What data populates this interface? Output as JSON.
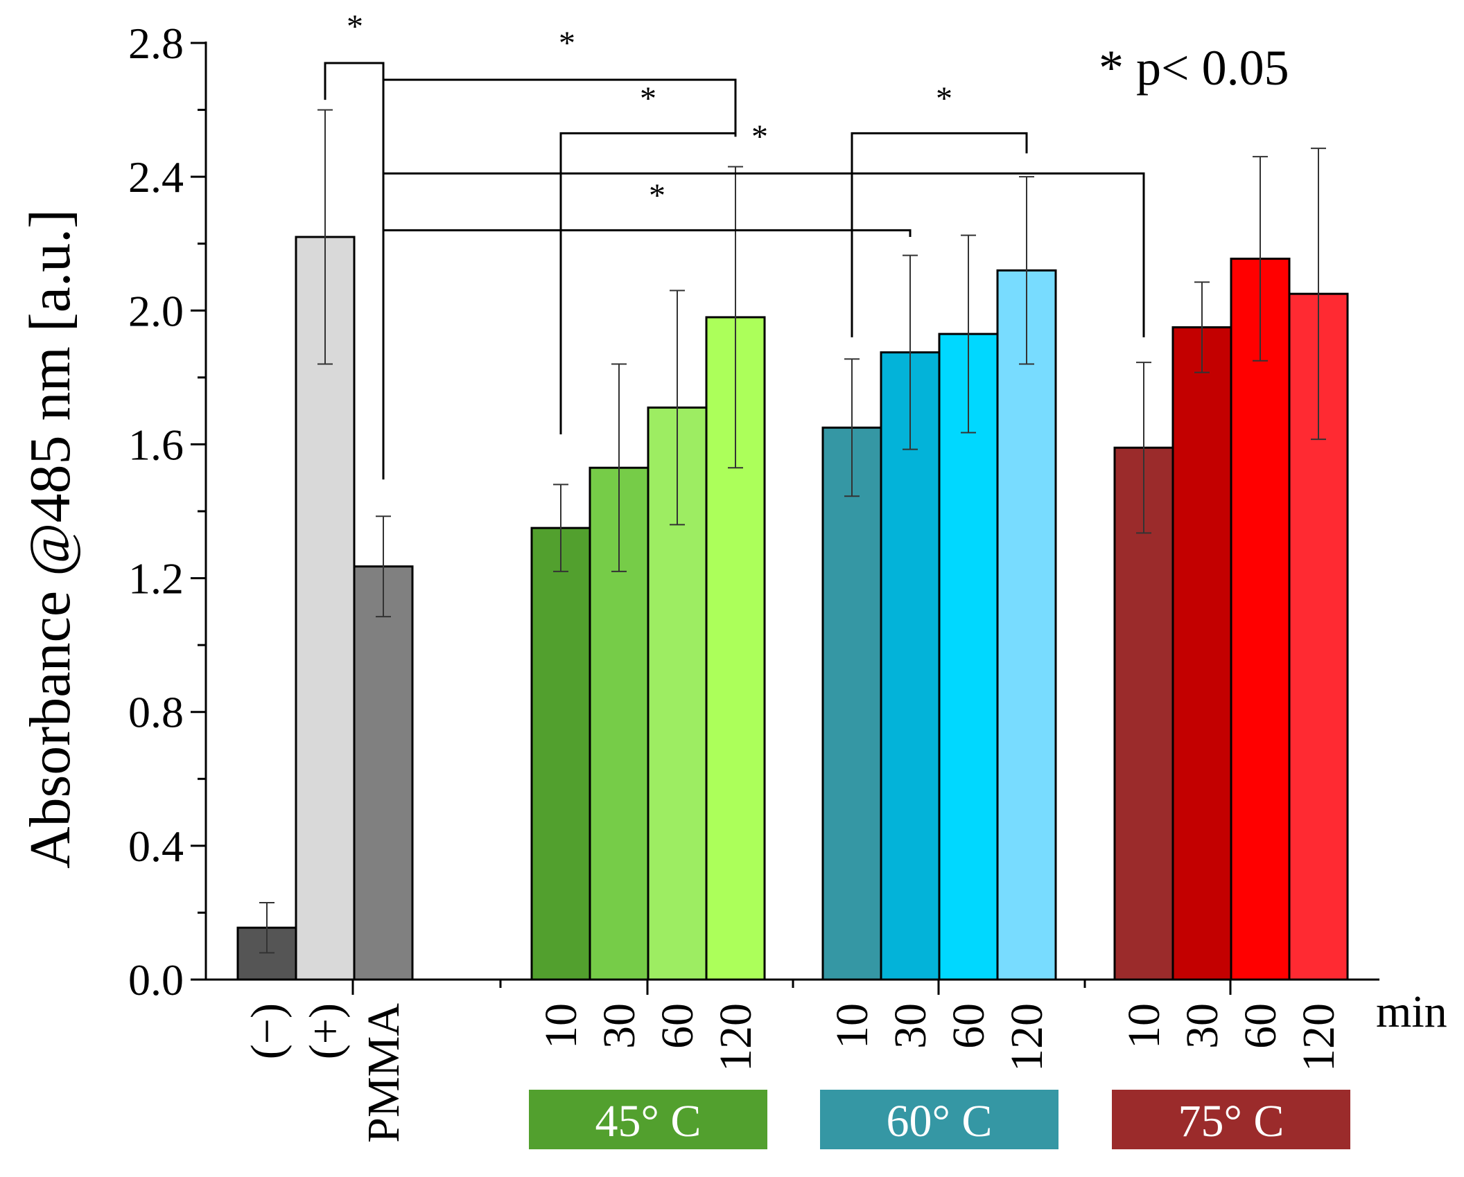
{
  "chart_data": {
    "type": "bar",
    "title": "",
    "ylabel": "Absorbance @485 nm [a.u.]",
    "xlabel": "",
    "x_unit_label": "min",
    "ylim": [
      0,
      2.8
    ],
    "y_ticks": [
      0.0,
      0.4,
      0.8,
      1.2,
      1.6,
      2.0,
      2.4,
      2.8
    ],
    "y_tick_labels": [
      "0.0",
      "0.4",
      "0.8",
      "1.2",
      "1.6",
      "2.0",
      "2.4",
      "2.8"
    ],
    "significance_note": "* p< 0.05",
    "significance_star": "*",
    "groups": [
      {
        "name": "controls",
        "label": "",
        "color": "",
        "bars": [
          {
            "label": "(−)",
            "value": 0.155,
            "error": 0.075,
            "color": "#555555"
          },
          {
            "label": "(+)",
            "value": 2.22,
            "error": 0.38,
            "color": "#d9d9d9"
          },
          {
            "label": "PMMA",
            "value": 1.235,
            "error": 0.15,
            "color": "#808080"
          }
        ]
      },
      {
        "name": "45C",
        "label": "45°  C",
        "color": "#52a02e",
        "bars": [
          {
            "label": "10",
            "value": 1.35,
            "error": 0.13,
            "color": "#52a02e"
          },
          {
            "label": "30",
            "value": 1.53,
            "error": 0.31,
            "color": "#76cc48"
          },
          {
            "label": "60",
            "value": 1.71,
            "error": 0.35,
            "color": "#9ded62"
          },
          {
            "label": "120",
            "value": 1.98,
            "error": 0.45,
            "color": "#acff5a"
          }
        ]
      },
      {
        "name": "60C",
        "label": "60°  C",
        "color": "#3597a4",
        "bars": [
          {
            "label": "10",
            "value": 1.65,
            "error": 0.205,
            "color": "#3597a4"
          },
          {
            "label": "30",
            "value": 1.875,
            "error": 0.29,
            "color": "#03b3d9"
          },
          {
            "label": "60",
            "value": 1.93,
            "error": 0.295,
            "color": "#00d8ff"
          },
          {
            "label": "120",
            "value": 2.12,
            "error": 0.28,
            "color": "#78dcff"
          }
        ]
      },
      {
        "name": "75C",
        "label": "75°  C",
        "color": "#9b2b2b",
        "bars": [
          {
            "label": "10",
            "value": 1.59,
            "error": 0.255,
            "color": "#9b2b2b"
          },
          {
            "label": "30",
            "value": 1.95,
            "error": 0.135,
            "color": "#c30000"
          },
          {
            "label": "60",
            "value": 2.155,
            "error": 0.305,
            "color": "#ff0000"
          },
          {
            "label": "120",
            "value": 2.05,
            "error": 0.435,
            "color": "#ff2a32"
          }
        ]
      }
    ],
    "significance_brackets": [
      {
        "from": "(+)",
        "to": "PMMA",
        "y": 2.74,
        "from_end": 2.63,
        "to_end": 1.495,
        "star": "*"
      },
      {
        "from": "PMMA",
        "to": "45C-120",
        "y": 2.69,
        "from_end": 2.74,
        "to_end": 2.52,
        "star": "*"
      },
      {
        "from": "45C-10",
        "to": "45C-120",
        "y": 2.53,
        "from_end": 1.63,
        "to_end": 2.52,
        "star": "*"
      },
      {
        "from": "60C-10",
        "to": "60C-120",
        "y": 2.53,
        "from_end": 1.92,
        "to_end": 2.47,
        "star": "*"
      },
      {
        "from": "PMMA",
        "to": "75C-10",
        "y": 2.41,
        "from_end": 2.74,
        "to_end": 1.92,
        "star": "*"
      },
      {
        "from": "PMMA",
        "to": "60C-30",
        "y": 2.24,
        "from_end": 2.74,
        "to_end": 2.22,
        "star": "*"
      }
    ]
  }
}
